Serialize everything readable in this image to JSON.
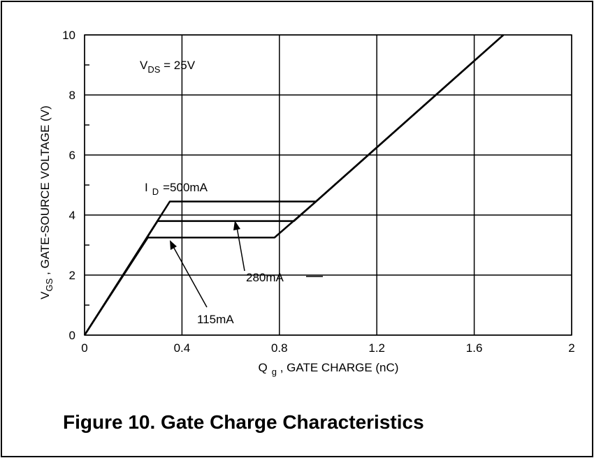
{
  "chart_data": {
    "type": "line",
    "title": "Figure 10. Gate Charge Characteristics",
    "x_label": {
      "main": "Q",
      "sub": "g",
      "rest": " , GATE CHARGE (nC)"
    },
    "y_label": {
      "main": "V",
      "sub": "GS",
      "rest": " , GATE-SOURCE VOLTAGE (V)"
    },
    "condition": {
      "main": "V",
      "sub": "DS",
      "rest": " = 25V"
    },
    "id_label": {
      "main": "I",
      "sub": "D"
    },
    "xlim": [
      0,
      2
    ],
    "ylim": [
      0,
      10
    ],
    "xticks": [
      0,
      0.4,
      0.8,
      1.2,
      1.6,
      2
    ],
    "yticks": [
      0,
      2,
      4,
      6,
      8,
      10
    ],
    "yticks_minor": [
      1,
      3,
      5,
      7,
      9
    ],
    "grid": true,
    "series": [
      {
        "name": "=500mA",
        "color": "#000000",
        "x": [
          0,
          0.35,
          0.95,
          1.72
        ],
        "values": [
          0,
          4.45,
          4.45,
          10
        ]
      },
      {
        "name": "280mA",
        "color": "#000000",
        "x": [
          0,
          0.3,
          0.86,
          0.95,
          1.72
        ],
        "values": [
          0,
          3.8,
          3.8,
          4.45,
          10
        ]
      },
      {
        "name": "115mA",
        "color": "#000000",
        "x": [
          0,
          0.26,
          0.78,
          0.95,
          1.72
        ],
        "values": [
          0,
          3.25,
          3.25,
          4.45,
          10
        ]
      }
    ]
  }
}
